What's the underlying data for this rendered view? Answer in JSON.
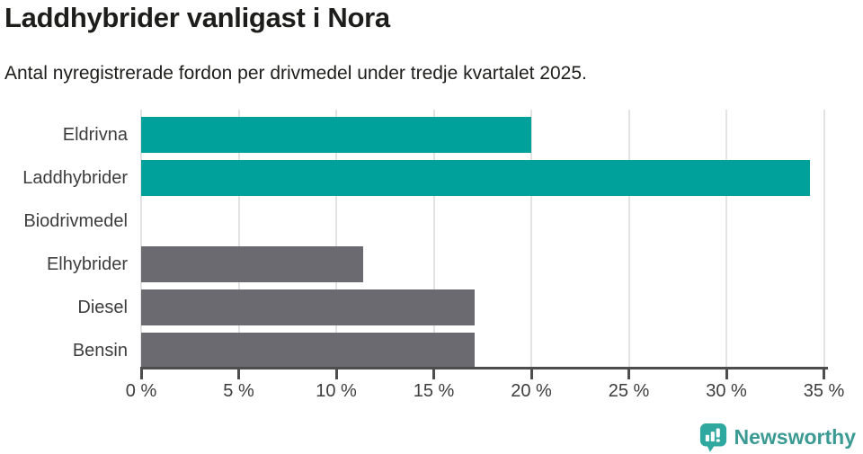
{
  "header": {
    "title": "Laddhybrider vanligast i Nora",
    "subtitle": "Antal nyregistrerade fordon per drivmedel under tredje kvartalet 2025."
  },
  "chart_data": {
    "type": "bar",
    "orientation": "horizontal",
    "title": "Laddhybrider vanligast i Nora",
    "subtitle": "Antal nyregistrerade fordon per drivmedel under tredje kvartalet 2025.",
    "categories": [
      "Eldrivna",
      "Laddhybrider",
      "Biodrivmedel",
      "Elhybrider",
      "Diesel",
      "Bensin"
    ],
    "values": [
      20.0,
      34.3,
      0,
      11.4,
      17.1,
      17.1
    ],
    "bar_colors": [
      "#00a19a",
      "#00a19a",
      "#6b6a71",
      "#6b6a71",
      "#6b6a71",
      "#6b6a71"
    ],
    "highlight_color": "#00a19a",
    "default_color": "#6b6a71",
    "xlim": [
      0,
      35
    ],
    "x_ticks": [
      0,
      5,
      10,
      15,
      20,
      25,
      30,
      35
    ],
    "x_tick_labels": [
      "0 %",
      "5 %",
      "10 %",
      "15 %",
      "20 %",
      "25 %",
      "30 %",
      "35 %"
    ],
    "grid": true,
    "gridline_color": "#e3e3e3",
    "axis_color": "#4d4d4d",
    "legend": "none"
  },
  "footer": {
    "brand": "Newsworthy",
    "brand_color": "#3b9a93",
    "logo_icon": "newsworthy-barchart-speech-bubble-icon",
    "logo_icon_color": "#2fa8a0"
  }
}
